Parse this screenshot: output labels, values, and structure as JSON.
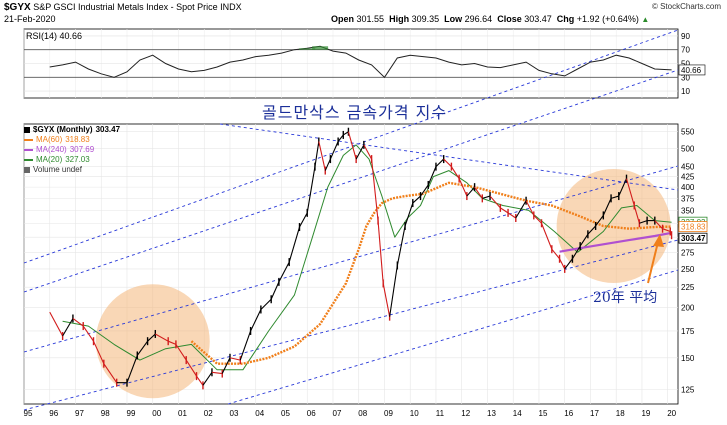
{
  "header": {
    "symbol": "$GYX",
    "name": "S&P GSCI Industrial Metals Index - Spot Price",
    "exchange": "INDX",
    "date": "21-Feb-2020",
    "open_label": "Open",
    "open": "301.55",
    "high_label": "High",
    "high": "309.35",
    "low_label": "Low",
    "low": "296.64",
    "close_label": "Close",
    "close": "303.47",
    "chg_label": "Chg",
    "chg": "+1.92 (+0.64%)",
    "chg_arrow": "▲",
    "brand": "© StockCharts.com"
  },
  "rsi": {
    "label": "RSI(14)",
    "value": "40.66",
    "value_tag": "40.66",
    "ticks": [
      "90",
      "70",
      "50",
      "30",
      "10"
    ]
  },
  "legend": {
    "price": {
      "label": "$GYX (Monthly)",
      "value": "303.47"
    },
    "ma60": {
      "label": "MA(60)",
      "value": "318.83",
      "color": "#f07f1a"
    },
    "ma240": {
      "label": "MA(240)",
      "value": "307.69",
      "color": "#b050d0"
    },
    "ma20": {
      "label": "MA(20)",
      "value": "327.03",
      "color": "#2f8a2f"
    },
    "volume": {
      "label": "Volume undef"
    }
  },
  "annotations": {
    "title": "골드만삭스 금속가격 지수",
    "avg20": "20年 平均"
  },
  "price_tags": [
    "327.03",
    "318.83",
    "303.47"
  ],
  "chart_data": {
    "type": "line",
    "title": "",
    "y_scale": "log",
    "ylim": [
      115,
      575
    ],
    "y_ticks": [
      125,
      150,
      175,
      200,
      225,
      250,
      275,
      300,
      325,
      350,
      375,
      400,
      425,
      450,
      500,
      550
    ],
    "x_labels": [
      "95",
      "96",
      "97",
      "98",
      "99",
      "00",
      "01",
      "02",
      "03",
      "04",
      "05",
      "06",
      "07",
      "08",
      "09",
      "10",
      "11",
      "12",
      "13",
      "14",
      "15",
      "16",
      "17",
      "18",
      "19",
      "20"
    ],
    "x_start": 1995.0,
    "x_end": 2020.4,
    "grid": true,
    "series": [
      {
        "name": "$GYX",
        "x": [
          1996.0,
          1996.5,
          1996.9,
          1997.3,
          1997.7,
          1998.1,
          1998.6,
          1999.0,
          1999.4,
          1999.8,
          2000.1,
          2000.6,
          2000.9,
          2001.3,
          2001.7,
          2001.95,
          2002.3,
          2002.7,
          2003.0,
          2003.4,
          2003.8,
          2004.2,
          2004.6,
          2004.9,
          2005.3,
          2005.7,
          2006.0,
          2006.3,
          2006.45,
          2006.7,
          2006.9,
          2007.2,
          2007.4,
          2007.6,
          2007.9,
          2008.2,
          2008.5,
          2008.75,
          2008.95,
          2009.2,
          2009.5,
          2009.8,
          2010.1,
          2010.4,
          2010.7,
          2011.0,
          2011.3,
          2011.6,
          2011.9,
          2012.2,
          2012.5,
          2012.8,
          2013.1,
          2013.5,
          2013.8,
          2014.1,
          2014.5,
          2014.8,
          2015.1,
          2015.5,
          2015.8,
          2016.0,
          2016.3,
          2016.6,
          2016.9,
          2017.2,
          2017.5,
          2017.8,
          2018.1,
          2018.4,
          2018.7,
          2018.9,
          2019.2,
          2019.5,
          2019.8,
          2020.1,
          2020.15
        ],
        "values": [
          195,
          170,
          188,
          180,
          165,
          145,
          130,
          130,
          152,
          165,
          172,
          165,
          162,
          148,
          135,
          128,
          138,
          137,
          150,
          148,
          175,
          198,
          210,
          232,
          260,
          318,
          345,
          450,
          520,
          440,
          470,
          520,
          540,
          550,
          470,
          510,
          470,
          330,
          230,
          190,
          255,
          320,
          365,
          380,
          405,
          450,
          470,
          450,
          420,
          380,
          400,
          375,
          380,
          355,
          345,
          335,
          370,
          340,
          325,
          280,
          265,
          250,
          265,
          285,
          305,
          320,
          340,
          375,
          380,
          420,
          360,
          325,
          330,
          330,
          315,
          310,
          303.47
        ]
      },
      {
        "name": "MA(60)",
        "x": [
          2001.5,
          2002.5,
          2003.5,
          2004.5,
          2005.5,
          2006.5,
          2007.5,
          2008.0,
          2008.3,
          2008.6,
          2008.9,
          2009.3,
          2009.8,
          2010.5,
          2011.5,
          2012.5,
          2013.5,
          2014.5,
          2015.5,
          2016.5,
          2017.5,
          2018.5,
          2019.5,
          2020.15
        ],
        "values": [
          165,
          145,
          145,
          150,
          160,
          182,
          230,
          280,
          320,
          345,
          365,
          375,
          380,
          385,
          410,
          400,
          385,
          370,
          360,
          340,
          320,
          315,
          318,
          318.83
        ]
      },
      {
        "name": "MA(240)",
        "x": [
          2015.8,
          2016.5,
          2017.5,
          2018.5,
          2019.5,
          2020.15
        ],
        "values": [
          276,
          281,
          288,
          295,
          302,
          307.69
        ]
      },
      {
        "name": "MA(20)",
        "x": [
          1996.5,
          1997.5,
          1998.5,
          1999.5,
          2000.5,
          2001.5,
          2002.5,
          2003.5,
          2004.5,
          2005.5,
          2006.2,
          2006.8,
          2007.4,
          2007.9,
          2008.4,
          2008.9,
          2009.4,
          2009.9,
          2010.4,
          2010.9,
          2011.5,
          2012.2,
          2012.8,
          2013.6,
          2014.6,
          2015.6,
          2016.5,
          2017.5,
          2018.2,
          2018.8,
          2019.5,
          2020.15
        ],
        "values": [
          185,
          180,
          162,
          148,
          158,
          162,
          140,
          140,
          175,
          215,
          300,
          400,
          480,
          510,
          470,
          380,
          300,
          335,
          360,
          425,
          440,
          410,
          375,
          360,
          350,
          310,
          275,
          310,
          355,
          360,
          330,
          327.03
        ]
      },
      {
        "name": "RSI(14)",
        "x": [
          1996.0,
          1996.5,
          1997.0,
          1997.5,
          1998.0,
          1998.5,
          1999.0,
          1999.5,
          2000.0,
          2000.5,
          2001.0,
          2001.5,
          2002.0,
          2002.5,
          2003.0,
          2003.5,
          2004.0,
          2004.5,
          2005.0,
          2005.5,
          2006.0,
          2006.5,
          2007.0,
          2007.5,
          2008.0,
          2008.5,
          2009.0,
          2009.5,
          2010.0,
          2010.5,
          2011.0,
          2011.5,
          2012.0,
          2012.5,
          2013.0,
          2013.5,
          2014.0,
          2014.5,
          2015.0,
          2015.5,
          2016.0,
          2016.5,
          2017.0,
          2017.5,
          2018.0,
          2018.5,
          2019.0,
          2019.5,
          2020.15
        ],
        "values": [
          45,
          48,
          52,
          42,
          35,
          30,
          38,
          55,
          62,
          50,
          42,
          38,
          40,
          45,
          52,
          55,
          60,
          62,
          65,
          70,
          72,
          75,
          68,
          65,
          55,
          48,
          30,
          58,
          62,
          60,
          58,
          52,
          48,
          50,
          45,
          44,
          48,
          52,
          40,
          35,
          32,
          42,
          52,
          55,
          62,
          58,
          50,
          42,
          40.66
        ]
      }
    ]
  }
}
